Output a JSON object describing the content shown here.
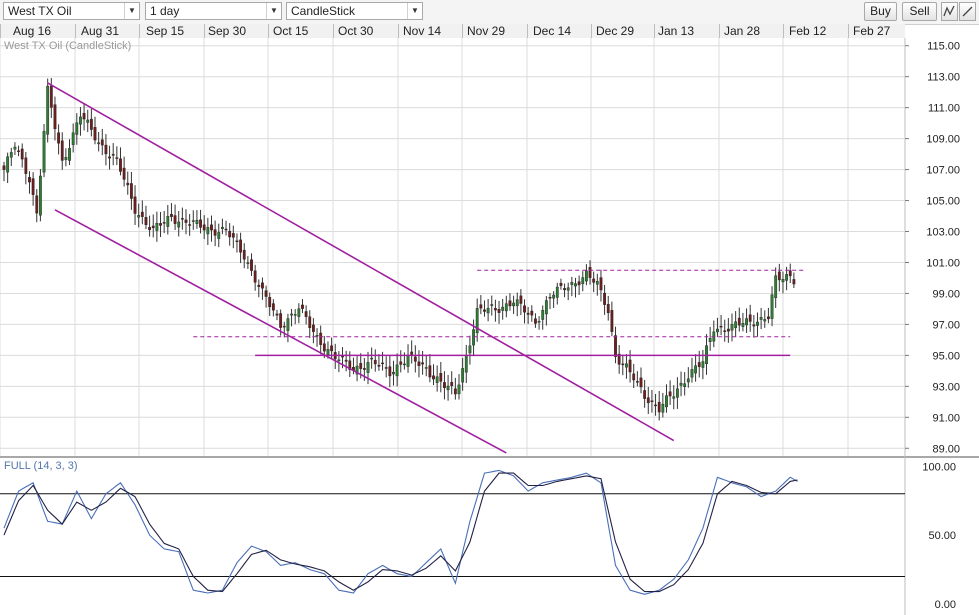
{
  "toolbar": {
    "symbol": "West TX Oil",
    "interval": "1 day",
    "chart_type": "CandleStick",
    "buy_label": "Buy",
    "sell_label": "Sell"
  },
  "colors": {
    "bull": "#2e7d32",
    "bear": "#6b1f1f",
    "trend": "#a020a0",
    "osc_main": "#4a6fb8",
    "osc_signal": "#222244",
    "grid": "#dcdcdc"
  },
  "chart_data": [
    {
      "type": "candlestick",
      "title": "West TX Oil (CandleStick)",
      "x": [
        "Aug 16",
        "Aug 31",
        "Sep 15",
        "Sep 30",
        "Oct 15",
        "Oct 30",
        "Nov 14",
        "Nov 29",
        "Dec 14",
        "Dec 29",
        "Jan 13",
        "Jan 28",
        "Feb 12",
        "Feb 27"
      ],
      "yticks": [
        "115.00",
        "113.00",
        "111.00",
        "109.00",
        "107.00",
        "105.00",
        "103.00",
        "101.00",
        "99.00",
        "97.00",
        "95.00",
        "93.00",
        "91.00",
        "89.00"
      ],
      "ylim": [
        88.5,
        115.5
      ],
      "grid": true,
      "anchors": [
        [
          0,
          107.0
        ],
        [
          3,
          108.5
        ],
        [
          7,
          106.5
        ],
        [
          9,
          104.2
        ],
        [
          12,
          112.0
        ],
        [
          16,
          107.5
        ],
        [
          21,
          110.5
        ],
        [
          26,
          108.8
        ],
        [
          31,
          107.5
        ],
        [
          36,
          104.5
        ],
        [
          41,
          103.0
        ],
        [
          46,
          104.0
        ],
        [
          51,
          103.5
        ],
        [
          56,
          103.2
        ],
        [
          61,
          103.0
        ],
        [
          66,
          101.5
        ],
        [
          71,
          99.0
        ],
        [
          76,
          97.0
        ],
        [
          81,
          98.0
        ],
        [
          86,
          96.2
        ],
        [
          91,
          94.8
        ],
        [
          96,
          94.2
        ],
        [
          101,
          94.5
        ],
        [
          106,
          94.0
        ],
        [
          111,
          94.8
        ],
        [
          116,
          94.2
        ],
        [
          121,
          93.0
        ],
        [
          124,
          92.5
        ],
        [
          127,
          95.0
        ],
        [
          130,
          97.8
        ],
        [
          135,
          98.0
        ],
        [
          140,
          98.5
        ],
        [
          146,
          97.2
        ],
        [
          150,
          98.8
        ],
        [
          155,
          99.5
        ],
        [
          160,
          100.2
        ],
        [
          163,
          99.5
        ],
        [
          166,
          98.0
        ],
        [
          168,
          95.0
        ],
        [
          172,
          93.8
        ],
        [
          176,
          92.5
        ],
        [
          180,
          91.5
        ],
        [
          184,
          92.5
        ],
        [
          188,
          93.8
        ],
        [
          192,
          94.5
        ],
        [
          195,
          96.8
        ],
        [
          200,
          96.8
        ],
        [
          205,
          97.2
        ],
        [
          210,
          97.5
        ],
        [
          212,
          99.8
        ],
        [
          216,
          100.2
        ],
        [
          217,
          100.0
        ]
      ],
      "trend_lines": [
        {
          "points": [
            [
              12,
              112.6
            ],
            [
              184,
              89.5
            ]
          ],
          "label": ""
        },
        {
          "points": [
            [
              14,
              104.4
            ],
            [
              138,
              88.7
            ]
          ],
          "label": ""
        },
        {
          "points": [
            [
              69,
              95.0
            ],
            [
              216,
              95.0
            ]
          ],
          "label": ""
        }
      ],
      "levels": [
        {
          "value": 100.5,
          "from": 130,
          "to": 220,
          "style": "dashed"
        },
        {
          "value": 96.2,
          "from": 52,
          "to": 216,
          "style": "dashed"
        }
      ]
    },
    {
      "type": "line",
      "title": "FULL (14, 3, 3)",
      "yticks": [
        "100.00",
        "50.00",
        "0.00"
      ],
      "ylim": [
        -8,
        106
      ],
      "levels": [
        80,
        20
      ],
      "series": [
        {
          "anchors": [
            [
              0,
              55
            ],
            [
              4,
              82
            ],
            [
              8,
              88
            ],
            [
              12,
              60
            ],
            [
              16,
              58
            ],
            [
              20,
              82
            ],
            [
              24,
              62
            ],
            [
              28,
              80
            ],
            [
              32,
              88
            ],
            [
              36,
              72
            ],
            [
              40,
              50
            ],
            [
              44,
              40
            ],
            [
              48,
              38
            ],
            [
              52,
              10
            ],
            [
              56,
              8
            ],
            [
              60,
              10
            ],
            [
              64,
              30
            ],
            [
              68,
              42
            ],
            [
              72,
              38
            ],
            [
              76,
              28
            ],
            [
              80,
              30
            ],
            [
              84,
              25
            ],
            [
              88,
              22
            ],
            [
              92,
              10
            ],
            [
              96,
              8
            ],
            [
              100,
              22
            ],
            [
              104,
              28
            ],
            [
              108,
              22
            ],
            [
              112,
              20
            ],
            [
              116,
              30
            ],
            [
              120,
              40
            ],
            [
              124,
              15
            ],
            [
              128,
              60
            ],
            [
              132,
              95
            ],
            [
              136,
              97
            ],
            [
              140,
              93
            ],
            [
              144,
              82
            ],
            [
              148,
              88
            ],
            [
              152,
              90
            ],
            [
              156,
              92
            ],
            [
              160,
              95
            ],
            [
              164,
              88
            ],
            [
              168,
              28
            ],
            [
              172,
              10
            ],
            [
              176,
              7
            ],
            [
              180,
              10
            ],
            [
              184,
              18
            ],
            [
              188,
              32
            ],
            [
              192,
              55
            ],
            [
              196,
              92
            ],
            [
              200,
              88
            ],
            [
              204,
              85
            ],
            [
              208,
              78
            ],
            [
              212,
              82
            ],
            [
              216,
              92
            ],
            [
              218,
              89
            ]
          ]
        },
        {
          "anchors": [
            [
              0,
              50
            ],
            [
              4,
              75
            ],
            [
              8,
              86
            ],
            [
              12,
              68
            ],
            [
              16,
              58
            ],
            [
              20,
              74
            ],
            [
              24,
              68
            ],
            [
              28,
              74
            ],
            [
              32,
              84
            ],
            [
              36,
              78
            ],
            [
              40,
              58
            ],
            [
              44,
              44
            ],
            [
              48,
              40
            ],
            [
              52,
              20
            ],
            [
              56,
              10
            ],
            [
              60,
              9
            ],
            [
              64,
              22
            ],
            [
              68,
              36
            ],
            [
              72,
              39
            ],
            [
              76,
              32
            ],
            [
              80,
              29
            ],
            [
              84,
              27
            ],
            [
              88,
              24
            ],
            [
              92,
              16
            ],
            [
              96,
              10
            ],
            [
              100,
              16
            ],
            [
              104,
              25
            ],
            [
              108,
              24
            ],
            [
              112,
              21
            ],
            [
              116,
              26
            ],
            [
              120,
              35
            ],
            [
              124,
              24
            ],
            [
              128,
              45
            ],
            [
              132,
              82
            ],
            [
              136,
              95
            ],
            [
              140,
              95
            ],
            [
              144,
              86
            ],
            [
              148,
              86
            ],
            [
              152,
              89
            ],
            [
              156,
              91
            ],
            [
              160,
              93
            ],
            [
              164,
              91
            ],
            [
              168,
              45
            ],
            [
              172,
              18
            ],
            [
              176,
              9
            ],
            [
              180,
              9
            ],
            [
              184,
              14
            ],
            [
              188,
              25
            ],
            [
              192,
              44
            ],
            [
              196,
              80
            ],
            [
              200,
              89
            ],
            [
              204,
              86
            ],
            [
              208,
              81
            ],
            [
              212,
              80
            ],
            [
              216,
              89
            ],
            [
              218,
              90
            ]
          ]
        }
      ]
    }
  ]
}
